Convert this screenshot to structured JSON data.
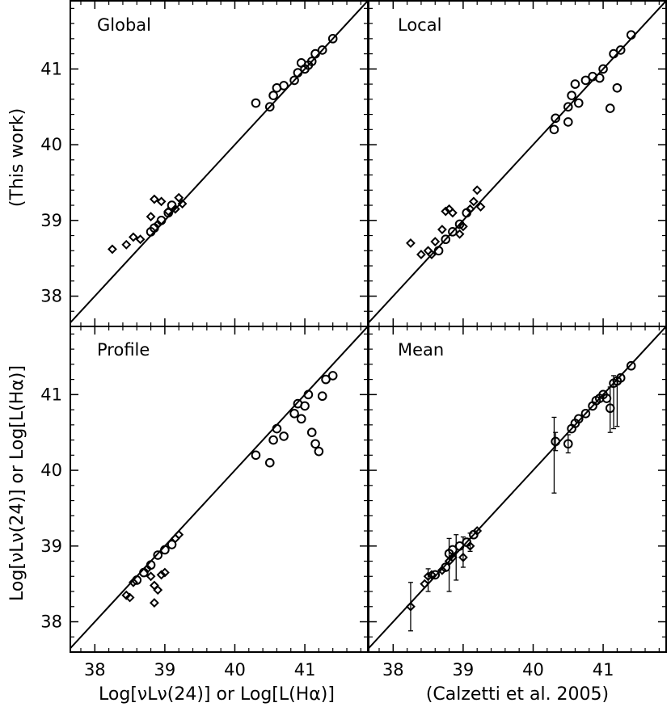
{
  "chart_data": {
    "type": "scatter",
    "layout": "2x2 panels, shared axes",
    "x_title_left": "Log[νLν(24)] or Log[L(Hα)]",
    "x_title_right": "(Calzetti et al. 2005)",
    "y_title_bottom": "Log[νLν(24)] or Log[L(Hα)]",
    "y_title_top": "(This work)",
    "xlim": [
      37.65,
      41.9
    ],
    "ylim": [
      37.6,
      41.9
    ],
    "xticks": [
      "38",
      "39",
      "40",
      "41"
    ],
    "yticks": [
      "38",
      "39",
      "40",
      "41"
    ],
    "reference_line": "y = x",
    "panels": [
      {
        "title": "Global",
        "circles": [
          [
            38.8,
            38.85
          ],
          [
            38.85,
            38.9
          ],
          [
            38.95,
            39.0
          ],
          [
            39.05,
            39.1
          ],
          [
            39.1,
            39.2
          ],
          [
            40.3,
            40.55
          ],
          [
            40.5,
            40.5
          ],
          [
            40.55,
            40.65
          ],
          [
            40.6,
            40.75
          ],
          [
            40.7,
            40.78
          ],
          [
            40.85,
            40.85
          ],
          [
            40.9,
            40.95
          ],
          [
            40.95,
            41.08
          ],
          [
            41.0,
            41.0
          ],
          [
            41.05,
            41.05
          ],
          [
            41.1,
            41.1
          ],
          [
            41.15,
            41.2
          ],
          [
            41.25,
            41.25
          ],
          [
            41.4,
            41.4
          ]
        ],
        "diamonds": [
          [
            38.25,
            38.62
          ],
          [
            38.45,
            38.68
          ],
          [
            38.55,
            38.78
          ],
          [
            38.65,
            38.75
          ],
          [
            38.8,
            39.05
          ],
          [
            38.85,
            39.28
          ],
          [
            38.9,
            38.95
          ],
          [
            38.95,
            39.25
          ],
          [
            39.05,
            39.12
          ],
          [
            39.15,
            39.15
          ],
          [
            39.2,
            39.3
          ],
          [
            39.25,
            39.22
          ]
        ]
      },
      {
        "title": "Local",
        "circles": [
          [
            38.65,
            38.6
          ],
          [
            38.75,
            38.75
          ],
          [
            38.85,
            38.85
          ],
          [
            38.95,
            38.95
          ],
          [
            39.05,
            39.1
          ],
          [
            40.3,
            40.2
          ],
          [
            40.32,
            40.35
          ],
          [
            40.5,
            40.3
          ],
          [
            40.5,
            40.5
          ],
          [
            40.55,
            40.65
          ],
          [
            40.6,
            40.8
          ],
          [
            40.65,
            40.55
          ],
          [
            40.75,
            40.85
          ],
          [
            40.85,
            40.9
          ],
          [
            40.95,
            40.88
          ],
          [
            41.0,
            41.0
          ],
          [
            41.1,
            40.48
          ],
          [
            41.15,
            41.2
          ],
          [
            41.2,
            40.75
          ],
          [
            41.25,
            41.25
          ],
          [
            41.4,
            41.45
          ]
        ],
        "diamonds": [
          [
            38.25,
            38.7
          ],
          [
            38.4,
            38.55
          ],
          [
            38.5,
            38.6
          ],
          [
            38.55,
            38.55
          ],
          [
            38.6,
            38.72
          ],
          [
            38.7,
            38.88
          ],
          [
            38.75,
            39.12
          ],
          [
            38.8,
            39.15
          ],
          [
            38.85,
            39.1
          ],
          [
            38.95,
            38.82
          ],
          [
            39.0,
            38.92
          ],
          [
            39.1,
            39.15
          ],
          [
            39.15,
            39.25
          ],
          [
            39.2,
            39.4
          ],
          [
            39.25,
            39.18
          ]
        ]
      },
      {
        "title": "Profile",
        "circles": [
          [
            38.6,
            38.55
          ],
          [
            38.7,
            38.65
          ],
          [
            38.8,
            38.75
          ],
          [
            38.9,
            38.88
          ],
          [
            39.0,
            38.95
          ],
          [
            39.1,
            39.02
          ],
          [
            40.3,
            40.2
          ],
          [
            40.5,
            40.1
          ],
          [
            40.55,
            40.4
          ],
          [
            40.6,
            40.55
          ],
          [
            40.7,
            40.45
          ],
          [
            40.85,
            40.75
          ],
          [
            40.9,
            40.88
          ],
          [
            40.95,
            40.68
          ],
          [
            41.0,
            40.85
          ],
          [
            41.05,
            41.0
          ],
          [
            41.1,
            40.5
          ],
          [
            41.15,
            40.35
          ],
          [
            41.2,
            40.25
          ],
          [
            41.25,
            40.98
          ],
          [
            41.3,
            41.2
          ],
          [
            41.4,
            41.25
          ]
        ],
        "diamonds": [
          [
            38.45,
            38.35
          ],
          [
            38.5,
            38.32
          ],
          [
            38.55,
            38.52
          ],
          [
            38.75,
            38.7
          ],
          [
            38.8,
            38.6
          ],
          [
            38.85,
            38.25
          ],
          [
            38.9,
            38.42
          ],
          [
            38.95,
            38.62
          ],
          [
            39.0,
            38.65
          ],
          [
            39.15,
            39.1
          ],
          [
            39.2,
            39.15
          ],
          [
            38.85,
            38.48
          ]
        ]
      },
      {
        "title": "Mean",
        "errorbars": [
          [
            38.25,
            38.2,
            0.32
          ],
          [
            38.5,
            38.55,
            0.15
          ],
          [
            38.8,
            38.75,
            0.35
          ],
          [
            38.9,
            38.85,
            0.3
          ],
          [
            39.0,
            38.92,
            0.2
          ],
          [
            39.1,
            39.05,
            0.12
          ],
          [
            40.3,
            40.2,
            0.5
          ],
          [
            40.32,
            40.38,
            0.12
          ],
          [
            40.5,
            40.35,
            0.12
          ],
          [
            41.1,
            40.8,
            0.3
          ],
          [
            41.15,
            40.9,
            0.35
          ],
          [
            41.2,
            40.88,
            0.3
          ]
        ],
        "circles": [
          [
            38.6,
            38.62
          ],
          [
            38.75,
            38.72
          ],
          [
            38.8,
            38.9
          ],
          [
            38.85,
            38.95
          ],
          [
            38.95,
            39.0
          ],
          [
            39.05,
            39.05
          ],
          [
            39.15,
            39.15
          ],
          [
            40.32,
            40.38
          ],
          [
            40.5,
            40.35
          ],
          [
            40.55,
            40.55
          ],
          [
            40.6,
            40.62
          ],
          [
            40.65,
            40.68
          ],
          [
            40.75,
            40.75
          ],
          [
            40.85,
            40.85
          ],
          [
            40.9,
            40.92
          ],
          [
            40.95,
            40.95
          ],
          [
            41.0,
            41.0
          ],
          [
            41.05,
            40.95
          ],
          [
            41.1,
            40.82
          ],
          [
            41.15,
            41.15
          ],
          [
            41.2,
            41.18
          ],
          [
            41.25,
            41.22
          ],
          [
            41.4,
            41.38
          ]
        ],
        "diamonds": [
          [
            38.25,
            38.2
          ],
          [
            38.45,
            38.5
          ],
          [
            38.5,
            38.6
          ],
          [
            38.55,
            38.62
          ],
          [
            38.7,
            38.68
          ],
          [
            38.8,
            38.8
          ],
          [
            38.85,
            38.85
          ],
          [
            39.0,
            38.85
          ],
          [
            39.1,
            39.0
          ],
          [
            39.2,
            39.2
          ]
        ]
      }
    ]
  }
}
